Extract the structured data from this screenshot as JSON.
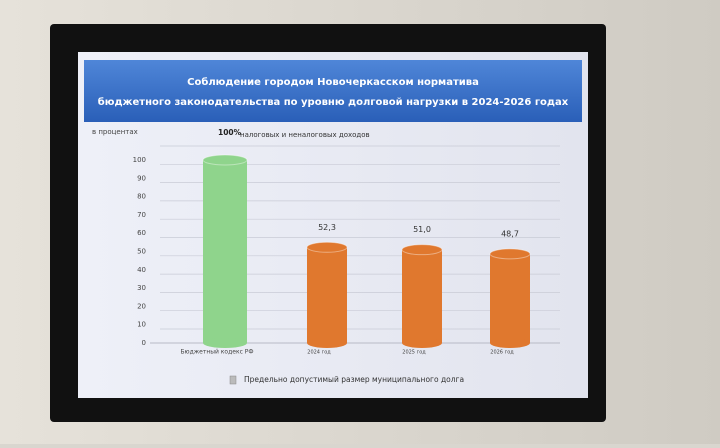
{
  "chart_data": {
    "type": "bar",
    "title": [
      "Соблюдение городом Новочеркасском норматива",
      "бюджетного законодательства по уровню долговой нагрузки в 2024-2026 годах"
    ],
    "y_label": "в процентах",
    "annotation": "налоговых и неналоговых доходов",
    "categories": [
      "Бюджетный кодекс РФ",
      "2024 год",
      "2025 год",
      "2026 год"
    ],
    "series": [
      {
        "name": "Предельно допустимый размер муниципального долга",
        "values": [
          100,
          52.3,
          51.0,
          48.7
        ],
        "value_labels": [
          "100%",
          "52,3",
          "51,0",
          "48,7"
        ],
        "colors": [
          "#8fd48c",
          "#e0782e",
          "#e0782e",
          "#e0782e"
        ]
      }
    ],
    "ylim": [
      0,
      100
    ],
    "yticks": [
      0,
      10,
      20,
      30,
      40,
      50,
      60,
      70,
      80,
      90,
      100
    ],
    "grid": true
  }
}
